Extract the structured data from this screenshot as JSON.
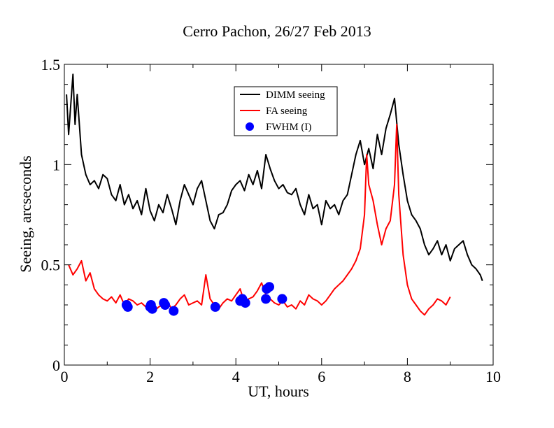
{
  "chart_data": {
    "type": "line",
    "title": "Cerro Pachon, 26/27 Feb 2013",
    "xlabel": "UT, hours",
    "ylabel": "Seeing, arcseconds",
    "xlim": [
      0,
      10
    ],
    "ylim": [
      0,
      1.5
    ],
    "x_ticks": [
      0,
      2,
      4,
      6,
      8,
      10
    ],
    "x_tick_labels": [
      "0",
      "2",
      "4",
      "6",
      "8",
      "10"
    ],
    "y_ticks": [
      0,
      0.5,
      1,
      1.5
    ],
    "y_tick_labels": [
      "0",
      "0.5",
      "1",
      "1.5"
    ],
    "grid": false,
    "legend_position": "top-center",
    "series": [
      {
        "name": "DIMM seeing",
        "kind": "line",
        "color": "#000000",
        "x": [
          0.05,
          0.1,
          0.15,
          0.2,
          0.25,
          0.3,
          0.4,
          0.5,
          0.6,
          0.7,
          0.8,
          0.9,
          1.0,
          1.1,
          1.2,
          1.3,
          1.4,
          1.5,
          1.6,
          1.7,
          1.8,
          1.9,
          2.0,
          2.1,
          2.2,
          2.3,
          2.4,
          2.5,
          2.6,
          2.7,
          2.8,
          2.9,
          3.0,
          3.1,
          3.2,
          3.3,
          3.4,
          3.5,
          3.6,
          3.7,
          3.8,
          3.9,
          4.0,
          4.1,
          4.2,
          4.3,
          4.4,
          4.5,
          4.6,
          4.7,
          4.8,
          4.9,
          5.0,
          5.1,
          5.2,
          5.3,
          5.4,
          5.5,
          5.6,
          5.7,
          5.8,
          5.9,
          6.0,
          6.1,
          6.2,
          6.3,
          6.4,
          6.5,
          6.6,
          6.7,
          6.8,
          6.9,
          7.0,
          7.1,
          7.2,
          7.3,
          7.4,
          7.5,
          7.6,
          7.7,
          7.8,
          7.9,
          8.0,
          8.1,
          8.2,
          8.3,
          8.4,
          8.5,
          8.6,
          8.7,
          8.8,
          8.9,
          9.0,
          9.1,
          9.2,
          9.3,
          9.4,
          9.5,
          9.6,
          9.7,
          9.75
        ],
        "y": [
          1.35,
          1.15,
          1.3,
          1.45,
          1.2,
          1.35,
          1.05,
          0.95,
          0.9,
          0.92,
          0.88,
          0.95,
          0.93,
          0.85,
          0.82,
          0.9,
          0.8,
          0.85,
          0.78,
          0.82,
          0.75,
          0.88,
          0.77,
          0.72,
          0.8,
          0.76,
          0.85,
          0.78,
          0.7,
          0.82,
          0.9,
          0.85,
          0.8,
          0.88,
          0.92,
          0.82,
          0.72,
          0.68,
          0.75,
          0.76,
          0.8,
          0.87,
          0.9,
          0.92,
          0.87,
          0.95,
          0.9,
          0.97,
          0.88,
          1.05,
          0.98,
          0.92,
          0.88,
          0.9,
          0.86,
          0.85,
          0.88,
          0.8,
          0.75,
          0.85,
          0.78,
          0.8,
          0.7,
          0.82,
          0.78,
          0.8,
          0.75,
          0.82,
          0.85,
          0.95,
          1.05,
          1.12,
          1.0,
          1.08,
          0.98,
          1.15,
          1.05,
          1.18,
          1.25,
          1.33,
          1.1,
          0.95,
          0.82,
          0.75,
          0.72,
          0.68,
          0.6,
          0.55,
          0.58,
          0.62,
          0.55,
          0.6,
          0.52,
          0.58,
          0.6,
          0.62,
          0.55,
          0.5,
          0.48,
          0.45,
          0.42
        ]
      },
      {
        "name": "FA seeing",
        "kind": "line",
        "color": "#ff0000",
        "x": [
          0.1,
          0.2,
          0.3,
          0.4,
          0.5,
          0.6,
          0.7,
          0.8,
          0.9,
          1.0,
          1.1,
          1.2,
          1.3,
          1.4,
          1.5,
          1.6,
          1.7,
          1.8,
          1.9,
          2.0,
          2.1,
          2.2,
          2.3,
          2.4,
          2.5,
          2.6,
          2.7,
          2.8,
          2.9,
          3.0,
          3.1,
          3.2,
          3.3,
          3.4,
          3.5,
          3.6,
          3.7,
          3.8,
          3.9,
          4.0,
          4.1,
          4.2,
          4.3,
          4.4,
          4.5,
          4.6,
          4.7,
          4.8,
          4.9,
          5.0,
          5.1,
          5.2,
          5.3,
          5.4,
          5.5,
          5.6,
          5.7,
          5.8,
          5.9,
          6.0,
          6.1,
          6.2,
          6.3,
          6.4,
          6.5,
          6.6,
          6.7,
          6.8,
          6.9,
          7.0,
          7.05,
          7.1,
          7.2,
          7.3,
          7.4,
          7.5,
          7.6,
          7.7,
          7.75,
          7.8,
          7.9,
          8.0,
          8.1,
          8.2,
          8.3,
          8.4,
          8.5,
          8.6,
          8.7,
          8.8,
          8.9,
          9.0
        ],
        "y": [
          0.5,
          0.45,
          0.48,
          0.52,
          0.42,
          0.46,
          0.38,
          0.35,
          0.33,
          0.32,
          0.34,
          0.31,
          0.35,
          0.3,
          0.33,
          0.32,
          0.3,
          0.31,
          0.29,
          0.28,
          0.27,
          0.29,
          0.3,
          0.32,
          0.28,
          0.3,
          0.33,
          0.35,
          0.3,
          0.31,
          0.32,
          0.3,
          0.45,
          0.33,
          0.3,
          0.28,
          0.31,
          0.33,
          0.32,
          0.35,
          0.38,
          0.31,
          0.33,
          0.34,
          0.37,
          0.41,
          0.35,
          0.33,
          0.31,
          0.3,
          0.32,
          0.29,
          0.3,
          0.28,
          0.32,
          0.3,
          0.35,
          0.33,
          0.32,
          0.3,
          0.32,
          0.35,
          0.38,
          0.4,
          0.42,
          0.45,
          0.48,
          0.52,
          0.58,
          0.75,
          1.05,
          0.9,
          0.82,
          0.7,
          0.6,
          0.68,
          0.72,
          0.9,
          1.2,
          0.85,
          0.55,
          0.4,
          0.33,
          0.3,
          0.27,
          0.25,
          0.28,
          0.3,
          0.33,
          0.32,
          0.3,
          0.34
        ]
      },
      {
        "name": "FWHM (I)",
        "kind": "scatter",
        "color": "#0000ff",
        "x": [
          1.45,
          1.48,
          2.0,
          2.02,
          2.05,
          2.32,
          2.35,
          2.55,
          3.52,
          4.1,
          4.15,
          4.22,
          4.7,
          4.72,
          4.78,
          5.08
        ],
        "y": [
          0.3,
          0.29,
          0.29,
          0.3,
          0.28,
          0.31,
          0.3,
          0.27,
          0.29,
          0.32,
          0.33,
          0.31,
          0.33,
          0.38,
          0.39,
          0.33
        ]
      }
    ]
  }
}
